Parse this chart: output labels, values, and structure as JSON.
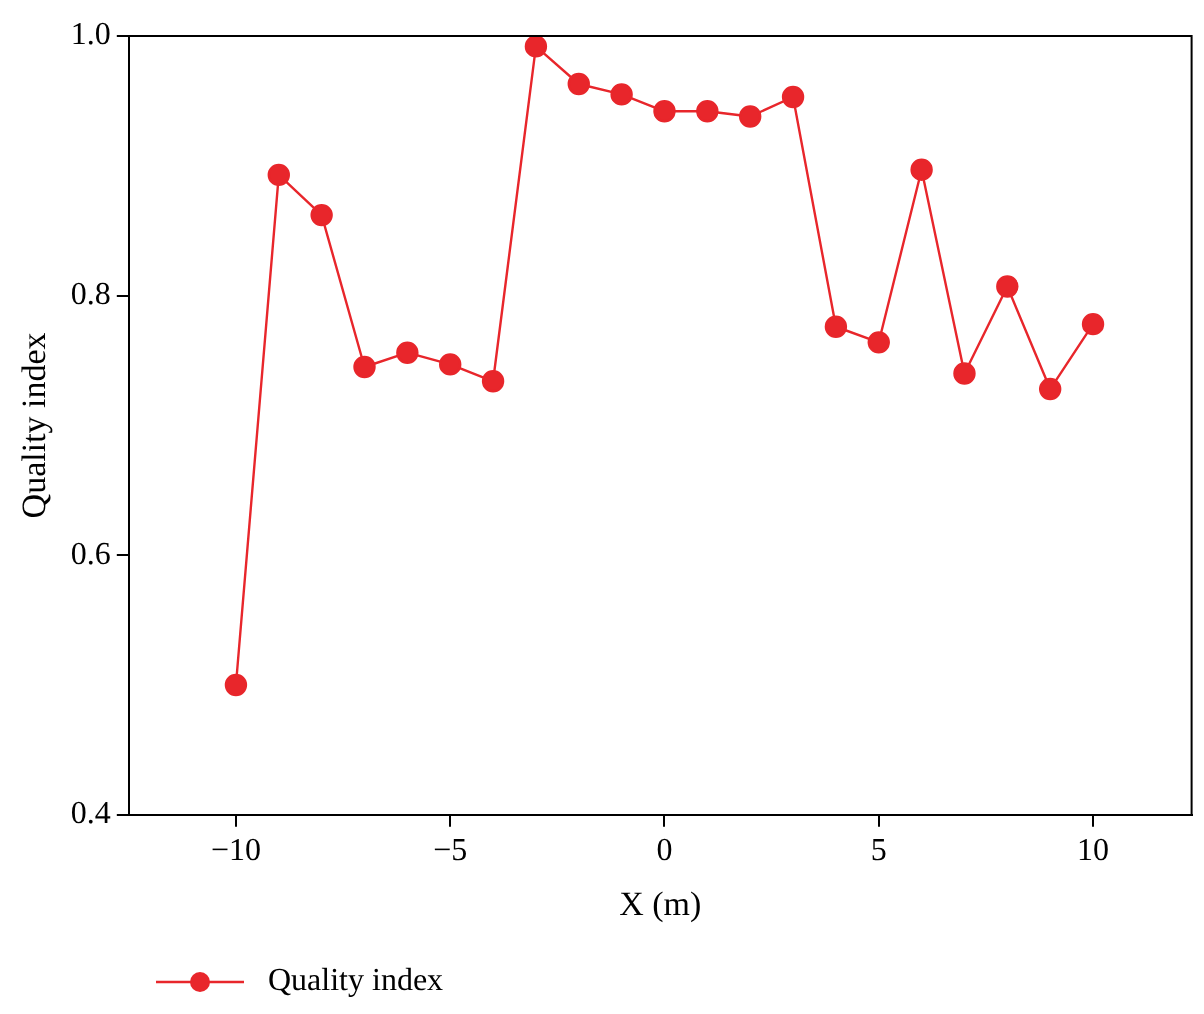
{
  "chart_data": {
    "type": "line",
    "xlabel": "X (m)",
    "ylabel": "Quality index",
    "x": [
      -10,
      -9,
      -8,
      -7,
      -6,
      -5,
      -4,
      -3,
      -2,
      -1,
      0,
      1,
      2,
      3,
      4,
      5,
      6,
      7,
      8,
      9,
      10
    ],
    "series": [
      {
        "name": "Quality index",
        "color": "#e8262b",
        "values": [
          0.5,
          0.893,
          0.862,
          0.745,
          0.756,
          0.747,
          0.734,
          0.992,
          0.963,
          0.955,
          0.942,
          0.942,
          0.938,
          0.953,
          0.776,
          0.764,
          0.897,
          0.74,
          0.807,
          0.728,
          0.778
        ]
      }
    ],
    "xlim": [
      -12.5,
      12.3
    ],
    "ylim": [
      0.4,
      1.0
    ],
    "xticks": [
      -10,
      -5,
      0,
      5,
      10
    ],
    "yticks": [
      0.4,
      0.6,
      0.8,
      {
        "value": 1,
        "label": "1.0"
      }
    ],
    "grid": false,
    "legend": "bottom left",
    "marker": "circle",
    "line_style": "solid"
  }
}
